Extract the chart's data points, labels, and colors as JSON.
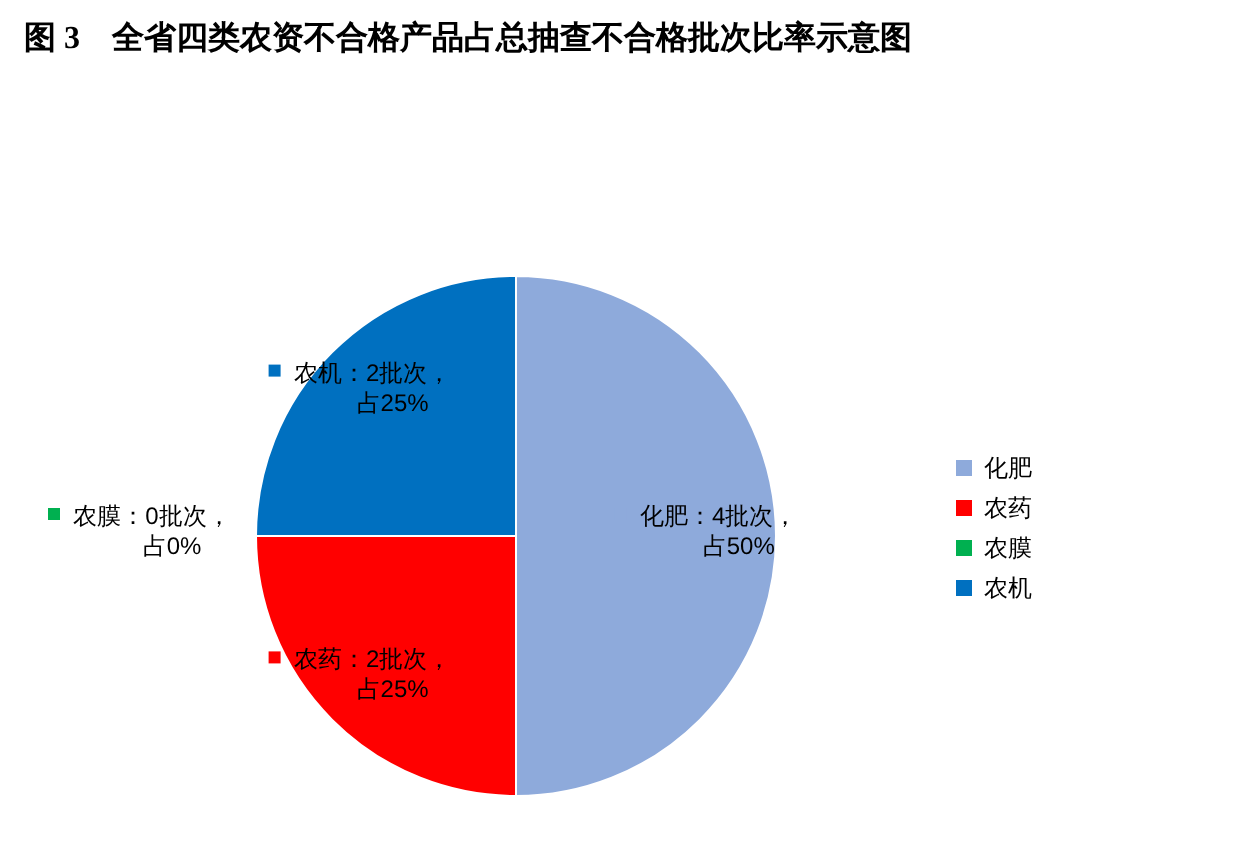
{
  "chart_data": {
    "type": "pie",
    "title": "图 3　全省四类农资不合格产品占总抽查不合格批次比率示意图",
    "categories": [
      "化肥",
      "农药",
      "农膜",
      "农机"
    ],
    "values": [
      50,
      25,
      0,
      25
    ],
    "colors": [
      "#8eaadb",
      "#ff0000",
      "#00b050",
      "#0070c0"
    ],
    "value_labels": [
      [
        "化肥：4批次，",
        "占50%"
      ],
      [
        "农药：2批次，",
        "占25%"
      ],
      [
        "农膜：0批次，",
        "占0%"
      ],
      [
        "农机：2批次，",
        "占25%"
      ]
    ],
    "legend": "right"
  }
}
